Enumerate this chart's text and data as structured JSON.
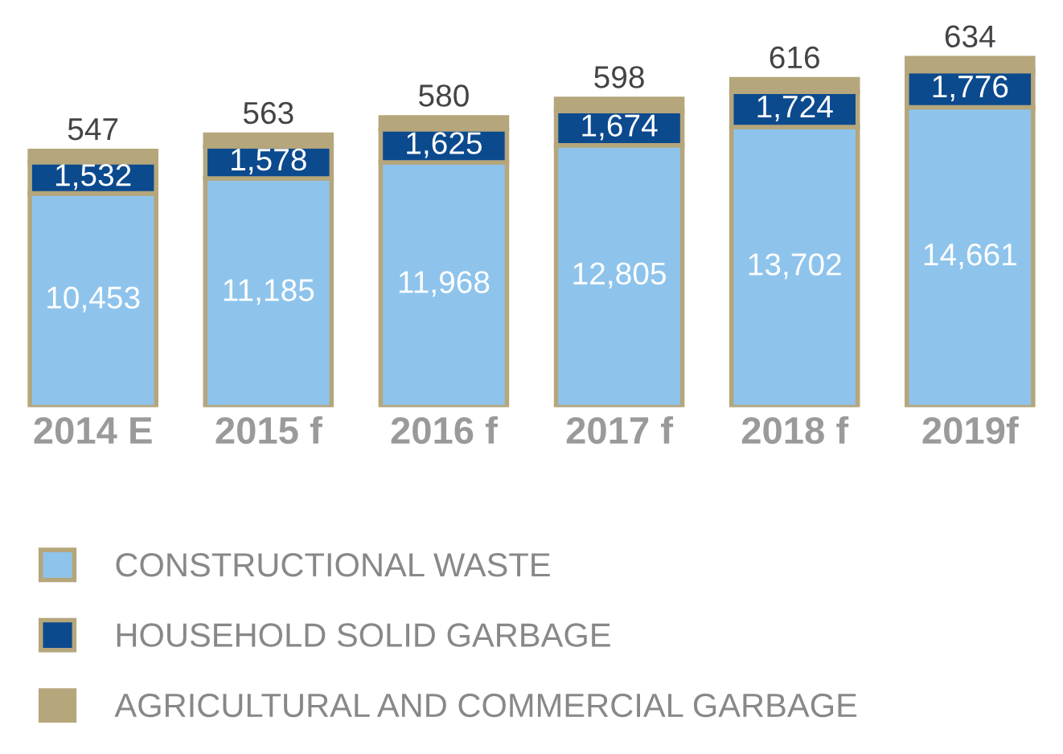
{
  "chart_data": {
    "type": "bar",
    "stacked": true,
    "legend": "bottom",
    "grid": false,
    "categories": [
      "2014 E",
      "2015 f",
      "2016 f",
      "2017 f",
      "2018 f",
      "2019f"
    ],
    "series": [
      {
        "name": "CONSTRUCTIONAL WASTE",
        "color": "#8ec4ec",
        "values": [
          10453,
          11185,
          11968,
          12805,
          13702,
          14661
        ],
        "value_labels": [
          "10,453",
          "11,185",
          "11,968",
          "12,805",
          "13,702",
          "14,661"
        ]
      },
      {
        "name": "HOUSEHOLD SOLID GARBAGE",
        "color": "#0c4a8e",
        "values": [
          1532,
          1578,
          1625,
          1674,
          1724,
          1776
        ],
        "value_labels": [
          "1,532",
          "1,578",
          "1,625",
          "1,674",
          "1,724",
          "1,776"
        ]
      },
      {
        "name": "AGRICULTURAL AND COMMERCIAL GARBAGE",
        "color": "#b5a67c",
        "values": [
          547,
          563,
          580,
          598,
          616,
          634
        ],
        "value_labels": [
          "547",
          "563",
          "580",
          "598",
          "616",
          "634"
        ]
      }
    ]
  }
}
